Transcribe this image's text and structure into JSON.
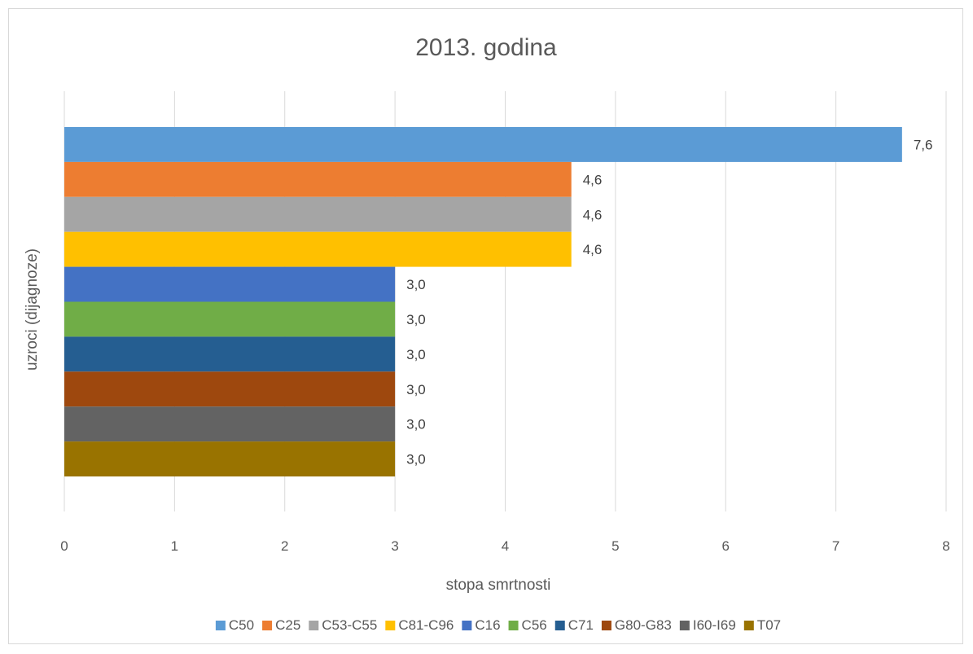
{
  "chart_data": {
    "type": "bar",
    "orientation": "horizontal",
    "title": "2013. godina",
    "xlabel": "stopa smrtnosti",
    "ylabel": "uzroci (dijagnoze)",
    "xlim": [
      0,
      8
    ],
    "xticks": [
      "0",
      "1",
      "2",
      "3",
      "4",
      "5",
      "6",
      "7",
      "8"
    ],
    "grid": true,
    "legend_position": "bottom",
    "series": [
      {
        "name": "C50",
        "value": 7.6,
        "label": "7,6",
        "color": "#5b9bd5"
      },
      {
        "name": "C25",
        "value": 4.6,
        "label": "4,6",
        "color": "#ed7d31"
      },
      {
        "name": "C53-C55",
        "value": 4.6,
        "label": "4,6",
        "color": "#a5a5a5"
      },
      {
        "name": "C81-C96",
        "value": 4.6,
        "label": "4,6",
        "color": "#ffc000"
      },
      {
        "name": "C16",
        "value": 3.0,
        "label": "3,0",
        "color": "#4472c4"
      },
      {
        "name": "C56",
        "value": 3.0,
        "label": "3,0",
        "color": "#70ad47"
      },
      {
        "name": "C71",
        "value": 3.0,
        "label": "3,0",
        "color": "#255e91"
      },
      {
        "name": "G80-G83",
        "value": 3.0,
        "label": "3,0",
        "color": "#9e480e"
      },
      {
        "name": "I60-I69",
        "value": 3.0,
        "label": "3,0",
        "color": "#636363"
      },
      {
        "name": "T07",
        "value": 3.0,
        "label": "3,0",
        "color": "#997300"
      }
    ]
  }
}
